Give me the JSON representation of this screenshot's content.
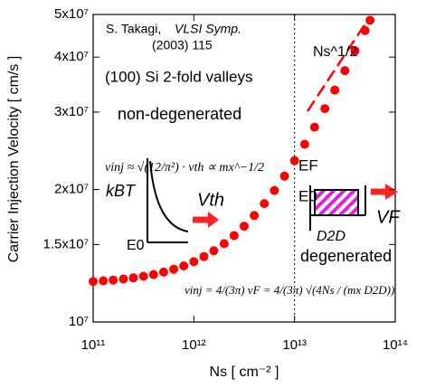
{
  "chart_data": {
    "type": "scatter",
    "x_label": "Ns  [ cm⁻² ]",
    "y_label": "Carrier Injection Velocity [ cm/s ]",
    "x_log": true,
    "y_log": true,
    "xlim": [
      100000000000,
      100000000000000
    ],
    "ylim": [
      10000000,
      50000000
    ],
    "xticks": [
      {
        "value": 100000000000,
        "label": "10¹¹"
      },
      {
        "value": 1000000000000,
        "label": "10¹²"
      },
      {
        "value": 10000000000000,
        "label": "10¹³"
      },
      {
        "value": 100000000000000,
        "label": "10¹⁴"
      }
    ],
    "yticks": [
      {
        "value": 10000000,
        "label": "10⁷"
      },
      {
        "value": 15000000,
        "label": "1.5x10⁷"
      },
      {
        "value": 20000000,
        "label": "2x10⁷"
      },
      {
        "value": 30000000,
        "label": "3x10⁷"
      },
      {
        "value": 40000000,
        "label": "4x10⁷"
      },
      {
        "value": 50000000,
        "label": "5x10⁷"
      }
    ],
    "reference_line_x": 10000000000000,
    "series": [
      {
        "color": "#ff0000",
        "x": [
          100000000000,
          126000000000,
          158000000000,
          200000000000,
          251000000000,
          316000000000,
          398000000000,
          501000000000,
          631000000000,
          794000000000,
          1000000000000,
          1260000000000,
          1580000000000,
          2000000000000,
          2510000000000,
          3160000000000,
          3980000000000,
          5010000000000,
          6310000000000,
          7940000000000,
          10000000000000,
          12600000000000,
          15800000000000,
          20000000000000,
          25100000000000,
          31600000000000,
          39800000000000,
          50100000000000,
          56200000000000
        ],
        "values": [
          12360000,
          12400000,
          12450000,
          12520000,
          12600000,
          12700000,
          12820000,
          12980000,
          13180000,
          13410000,
          13710000,
          14080000,
          14520000,
          15070000,
          15720000,
          16510000,
          17460000,
          18580000,
          19900000,
          21450000,
          23260000,
          25350000,
          27720000,
          30540000,
          33660000,
          37250000,
          41340000,
          45960000,
          48500000
        ]
      }
    ],
    "annotations": {
      "author": "S. Takagi,",
      "venue": "VLSI Symp.",
      "year": "(2003) 115",
      "valleys": "(100) Si 2-fold valleys",
      "non_degenerated": "non-degenerated",
      "formula_nondeg": "vinj ≈ √(12/π²) · vth ∝ mx^−1/2",
      "kbt": "kBT",
      "vth": "Vth",
      "e0_left": "E0",
      "ef": "EF",
      "e0_right": "E0",
      "vf": "VF",
      "d2d": "D2D",
      "slope": "Ns^1/2",
      "degenerated": "degenerated",
      "formula_deg": "vinj = 4/(3π) vF = 4/(3π) √(4Ns / (mx D2D))"
    }
  }
}
